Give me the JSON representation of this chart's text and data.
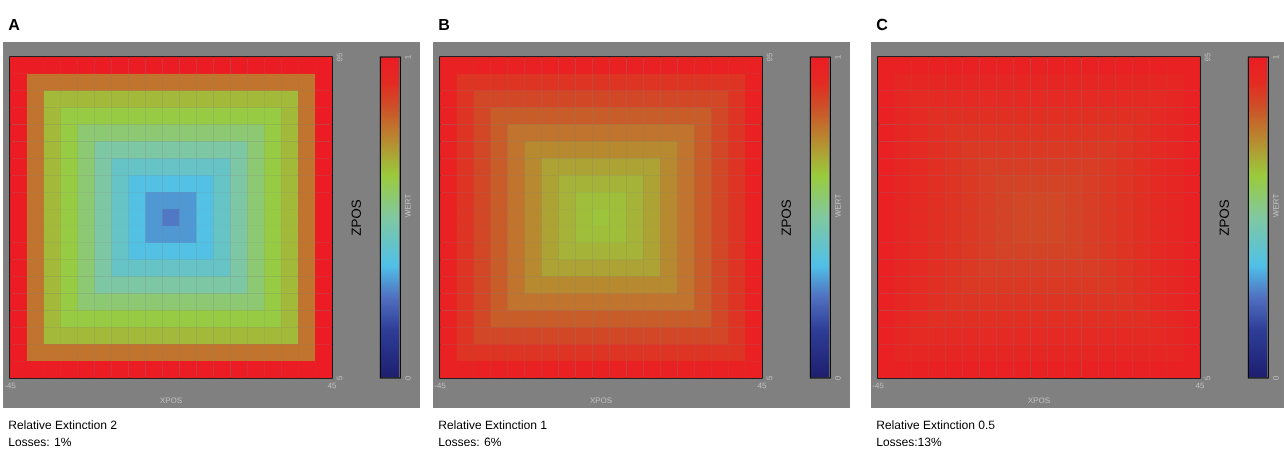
{
  "chart_data": [
    {
      "type": "heatmap",
      "title": "A",
      "xlabel": "XPOS",
      "ylabel": "ZPOS",
      "clabel": "WERT",
      "xlim": [
        -45,
        45
      ],
      "xticks": [
        -45,
        45
      ],
      "ylim": [
        5,
        95
      ],
      "yticks": [
        5,
        95
      ],
      "clim": [
        0,
        1
      ],
      "cticks": [
        0,
        1
      ],
      "annotations": [
        "Relative Extinction 2",
        "Losses: 1%"
      ],
      "cells": [
        [
          1,
          1,
          1,
          1,
          1,
          1,
          1,
          1,
          1,
          1,
          1,
          1,
          1,
          1,
          1,
          1,
          1,
          1,
          1
        ],
        [
          1,
          0.78,
          0.78,
          0.78,
          0.78,
          0.78,
          0.78,
          0.78,
          0.78,
          0.78,
          0.78,
          0.78,
          0.78,
          0.78,
          0.78,
          0.78,
          0.78,
          0.78,
          1
        ],
        [
          1,
          0.78,
          0.66,
          0.66,
          0.66,
          0.66,
          0.66,
          0.66,
          0.66,
          0.66,
          0.66,
          0.66,
          0.66,
          0.66,
          0.66,
          0.66,
          0.66,
          0.78,
          1
        ],
        [
          1,
          0.78,
          0.66,
          0.62,
          0.62,
          0.62,
          0.62,
          0.62,
          0.62,
          0.62,
          0.62,
          0.62,
          0.62,
          0.62,
          0.62,
          0.62,
          0.66,
          0.78,
          1
        ],
        [
          1,
          0.78,
          0.66,
          0.62,
          0.56,
          0.56,
          0.56,
          0.56,
          0.56,
          0.56,
          0.56,
          0.56,
          0.56,
          0.56,
          0.56,
          0.62,
          0.66,
          0.78,
          1
        ],
        [
          1,
          0.78,
          0.66,
          0.62,
          0.56,
          0.49,
          0.49,
          0.49,
          0.49,
          0.49,
          0.49,
          0.49,
          0.49,
          0.49,
          0.56,
          0.62,
          0.66,
          0.78,
          1
        ],
        [
          1,
          0.78,
          0.66,
          0.62,
          0.56,
          0.49,
          0.42,
          0.42,
          0.42,
          0.42,
          0.42,
          0.42,
          0.42,
          0.49,
          0.56,
          0.62,
          0.66,
          0.78,
          1
        ],
        [
          1,
          0.78,
          0.66,
          0.62,
          0.56,
          0.49,
          0.42,
          0.36,
          0.36,
          0.36,
          0.36,
          0.36,
          0.42,
          0.49,
          0.56,
          0.62,
          0.66,
          0.78,
          1
        ],
        [
          1,
          0.78,
          0.66,
          0.62,
          0.56,
          0.49,
          0.42,
          0.36,
          0.3,
          0.3,
          0.3,
          0.36,
          0.42,
          0.49,
          0.56,
          0.62,
          0.66,
          0.78,
          1
        ],
        [
          1,
          0.78,
          0.66,
          0.62,
          0.56,
          0.49,
          0.42,
          0.36,
          0.3,
          0.26,
          0.3,
          0.36,
          0.42,
          0.49,
          0.56,
          0.62,
          0.66,
          0.78,
          1
        ],
        [
          1,
          0.78,
          0.66,
          0.62,
          0.56,
          0.49,
          0.42,
          0.36,
          0.3,
          0.3,
          0.3,
          0.36,
          0.42,
          0.49,
          0.56,
          0.62,
          0.66,
          0.78,
          1
        ],
        [
          1,
          0.78,
          0.66,
          0.62,
          0.56,
          0.49,
          0.42,
          0.36,
          0.36,
          0.36,
          0.36,
          0.36,
          0.42,
          0.49,
          0.56,
          0.62,
          0.66,
          0.78,
          1
        ],
        [
          1,
          0.78,
          0.66,
          0.62,
          0.56,
          0.49,
          0.42,
          0.42,
          0.42,
          0.42,
          0.42,
          0.42,
          0.42,
          0.49,
          0.56,
          0.62,
          0.66,
          0.78,
          1
        ],
        [
          1,
          0.78,
          0.66,
          0.62,
          0.56,
          0.49,
          0.49,
          0.49,
          0.49,
          0.49,
          0.49,
          0.49,
          0.49,
          0.49,
          0.56,
          0.62,
          0.66,
          0.78,
          1
        ],
        [
          1,
          0.78,
          0.66,
          0.62,
          0.56,
          0.56,
          0.56,
          0.56,
          0.56,
          0.56,
          0.56,
          0.56,
          0.56,
          0.56,
          0.56,
          0.62,
          0.66,
          0.78,
          1
        ],
        [
          1,
          0.78,
          0.66,
          0.62,
          0.62,
          0.62,
          0.62,
          0.62,
          0.62,
          0.62,
          0.62,
          0.62,
          0.62,
          0.62,
          0.62,
          0.62,
          0.66,
          0.78,
          1
        ],
        [
          1,
          0.78,
          0.66,
          0.66,
          0.66,
          0.66,
          0.66,
          0.66,
          0.66,
          0.66,
          0.66,
          0.66,
          0.66,
          0.66,
          0.66,
          0.66,
          0.66,
          0.78,
          1
        ],
        [
          1,
          0.78,
          0.78,
          0.78,
          0.78,
          0.78,
          0.78,
          0.78,
          0.78,
          0.78,
          0.78,
          0.78,
          0.78,
          0.78,
          0.78,
          0.78,
          0.78,
          0.78,
          1
        ],
        [
          1,
          1,
          1,
          1,
          1,
          1,
          1,
          1,
          1,
          1,
          1,
          1,
          1,
          1,
          1,
          1,
          1,
          1,
          1
        ]
      ]
    },
    {
      "type": "heatmap",
      "title": "B",
      "xlabel": "XPOS",
      "ylabel": "ZPOS",
      "clabel": "WERT",
      "xlim": [
        -45,
        45
      ],
      "xticks": [
        -45,
        45
      ],
      "ylim": [
        5,
        95
      ],
      "yticks": [
        5,
        95
      ],
      "clim": [
        0,
        1
      ],
      "cticks": [
        0,
        1
      ],
      "annotations": [
        "Relative Extinction 1",
        "Losses: 6%"
      ],
      "cells": [
        [
          0.97,
          0.97,
          0.97,
          0.97,
          0.97,
          0.97,
          0.97,
          0.97,
          0.97,
          0.97,
          0.97,
          0.97,
          0.97,
          0.97,
          0.97,
          0.97,
          0.97,
          0.97,
          0.97
        ],
        [
          0.97,
          0.9,
          0.9,
          0.9,
          0.9,
          0.9,
          0.9,
          0.9,
          0.9,
          0.9,
          0.9,
          0.9,
          0.9,
          0.9,
          0.9,
          0.9,
          0.9,
          0.9,
          0.97
        ],
        [
          0.97,
          0.9,
          0.86,
          0.86,
          0.86,
          0.86,
          0.86,
          0.86,
          0.86,
          0.86,
          0.86,
          0.86,
          0.86,
          0.86,
          0.86,
          0.86,
          0.86,
          0.9,
          0.97
        ],
        [
          0.97,
          0.9,
          0.86,
          0.82,
          0.82,
          0.82,
          0.82,
          0.82,
          0.82,
          0.82,
          0.82,
          0.82,
          0.82,
          0.82,
          0.82,
          0.82,
          0.86,
          0.9,
          0.97
        ],
        [
          0.97,
          0.9,
          0.86,
          0.82,
          0.78,
          0.78,
          0.78,
          0.78,
          0.78,
          0.78,
          0.78,
          0.78,
          0.78,
          0.78,
          0.78,
          0.82,
          0.86,
          0.9,
          0.97
        ],
        [
          0.97,
          0.9,
          0.86,
          0.82,
          0.78,
          0.74,
          0.74,
          0.74,
          0.74,
          0.74,
          0.74,
          0.74,
          0.74,
          0.74,
          0.78,
          0.82,
          0.86,
          0.9,
          0.97
        ],
        [
          0.97,
          0.9,
          0.86,
          0.82,
          0.78,
          0.74,
          0.7,
          0.7,
          0.7,
          0.7,
          0.7,
          0.7,
          0.7,
          0.74,
          0.78,
          0.82,
          0.86,
          0.9,
          0.97
        ],
        [
          0.97,
          0.9,
          0.86,
          0.82,
          0.78,
          0.74,
          0.7,
          0.67,
          0.67,
          0.67,
          0.67,
          0.67,
          0.7,
          0.74,
          0.78,
          0.82,
          0.86,
          0.9,
          0.97
        ],
        [
          0.97,
          0.9,
          0.86,
          0.82,
          0.78,
          0.74,
          0.7,
          0.67,
          0.65,
          0.65,
          0.65,
          0.67,
          0.7,
          0.74,
          0.78,
          0.82,
          0.86,
          0.9,
          0.97
        ],
        [
          0.97,
          0.9,
          0.86,
          0.82,
          0.78,
          0.74,
          0.7,
          0.67,
          0.65,
          0.64,
          0.65,
          0.67,
          0.7,
          0.74,
          0.78,
          0.82,
          0.86,
          0.9,
          0.97
        ],
        [
          0.97,
          0.9,
          0.86,
          0.82,
          0.78,
          0.74,
          0.7,
          0.67,
          0.65,
          0.65,
          0.65,
          0.67,
          0.7,
          0.74,
          0.78,
          0.82,
          0.86,
          0.9,
          0.97
        ],
        [
          0.97,
          0.9,
          0.86,
          0.82,
          0.78,
          0.74,
          0.7,
          0.67,
          0.67,
          0.67,
          0.67,
          0.67,
          0.7,
          0.74,
          0.78,
          0.82,
          0.86,
          0.9,
          0.97
        ],
        [
          0.97,
          0.9,
          0.86,
          0.82,
          0.78,
          0.74,
          0.7,
          0.7,
          0.7,
          0.7,
          0.7,
          0.7,
          0.7,
          0.74,
          0.78,
          0.82,
          0.86,
          0.9,
          0.97
        ],
        [
          0.97,
          0.9,
          0.86,
          0.82,
          0.78,
          0.74,
          0.74,
          0.74,
          0.74,
          0.74,
          0.74,
          0.74,
          0.74,
          0.74,
          0.78,
          0.82,
          0.86,
          0.9,
          0.97
        ],
        [
          0.97,
          0.9,
          0.86,
          0.82,
          0.78,
          0.78,
          0.78,
          0.78,
          0.78,
          0.78,
          0.78,
          0.78,
          0.78,
          0.78,
          0.78,
          0.82,
          0.86,
          0.9,
          0.97
        ],
        [
          0.97,
          0.9,
          0.86,
          0.82,
          0.82,
          0.82,
          0.82,
          0.82,
          0.82,
          0.82,
          0.82,
          0.82,
          0.82,
          0.82,
          0.82,
          0.82,
          0.86,
          0.9,
          0.97
        ],
        [
          0.97,
          0.9,
          0.86,
          0.86,
          0.86,
          0.86,
          0.86,
          0.86,
          0.86,
          0.86,
          0.86,
          0.86,
          0.86,
          0.86,
          0.86,
          0.86,
          0.86,
          0.9,
          0.97
        ],
        [
          0.97,
          0.9,
          0.9,
          0.9,
          0.9,
          0.9,
          0.9,
          0.9,
          0.9,
          0.9,
          0.9,
          0.9,
          0.9,
          0.9,
          0.9,
          0.9,
          0.9,
          0.9,
          0.97
        ],
        [
          0.97,
          0.97,
          0.97,
          0.97,
          0.97,
          0.97,
          0.97,
          0.97,
          0.97,
          0.97,
          0.97,
          0.97,
          0.97,
          0.97,
          0.97,
          0.97,
          0.97,
          0.97,
          0.97
        ]
      ]
    },
    {
      "type": "heatmap",
      "title": "C",
      "xlabel": "XPOS",
      "ylabel": "ZPOS",
      "clabel": "WERT",
      "xlim": [
        -45,
        45
      ],
      "xticks": [
        -45,
        45
      ],
      "ylim": [
        5,
        95
      ],
      "yticks": [
        5,
        95
      ],
      "clim": [
        0,
        1
      ],
      "cticks": [
        0,
        1
      ],
      "annotations": [
        "Relative Extinction 0.5",
        "Losses:13%"
      ],
      "cells": [
        [
          0.97,
          0.97,
          0.97,
          0.97,
          0.97,
          0.97,
          0.97,
          0.97,
          0.97,
          0.97,
          0.97,
          0.97,
          0.97,
          0.97,
          0.97,
          0.97,
          0.97,
          0.97,
          0.97
        ],
        [
          0.97,
          0.94,
          0.94,
          0.94,
          0.94,
          0.94,
          0.94,
          0.94,
          0.94,
          0.94,
          0.94,
          0.94,
          0.94,
          0.94,
          0.94,
          0.94,
          0.94,
          0.94,
          0.97
        ],
        [
          0.97,
          0.94,
          0.92,
          0.92,
          0.92,
          0.92,
          0.92,
          0.92,
          0.92,
          0.92,
          0.92,
          0.92,
          0.92,
          0.92,
          0.92,
          0.92,
          0.92,
          0.94,
          0.97
        ],
        [
          0.97,
          0.94,
          0.92,
          0.91,
          0.91,
          0.91,
          0.91,
          0.91,
          0.91,
          0.91,
          0.91,
          0.91,
          0.91,
          0.91,
          0.91,
          0.91,
          0.92,
          0.94,
          0.97
        ],
        [
          0.97,
          0.94,
          0.92,
          0.91,
          0.9,
          0.9,
          0.9,
          0.9,
          0.9,
          0.9,
          0.9,
          0.9,
          0.9,
          0.9,
          0.9,
          0.91,
          0.92,
          0.94,
          0.97
        ],
        [
          0.97,
          0.94,
          0.92,
          0.91,
          0.9,
          0.89,
          0.89,
          0.89,
          0.89,
          0.89,
          0.89,
          0.89,
          0.89,
          0.89,
          0.9,
          0.91,
          0.92,
          0.94,
          0.97
        ],
        [
          0.97,
          0.94,
          0.92,
          0.91,
          0.9,
          0.89,
          0.88,
          0.88,
          0.88,
          0.88,
          0.88,
          0.88,
          0.88,
          0.89,
          0.9,
          0.91,
          0.92,
          0.94,
          0.97
        ],
        [
          0.97,
          0.94,
          0.92,
          0.91,
          0.9,
          0.89,
          0.88,
          0.87,
          0.87,
          0.87,
          0.87,
          0.87,
          0.88,
          0.89,
          0.9,
          0.91,
          0.92,
          0.94,
          0.97
        ],
        [
          0.97,
          0.94,
          0.92,
          0.91,
          0.9,
          0.89,
          0.88,
          0.87,
          0.86,
          0.86,
          0.86,
          0.87,
          0.88,
          0.89,
          0.9,
          0.91,
          0.92,
          0.94,
          0.97
        ],
        [
          0.97,
          0.94,
          0.92,
          0.91,
          0.9,
          0.89,
          0.88,
          0.87,
          0.86,
          0.86,
          0.86,
          0.87,
          0.88,
          0.89,
          0.9,
          0.91,
          0.92,
          0.94,
          0.97
        ],
        [
          0.97,
          0.94,
          0.92,
          0.91,
          0.9,
          0.89,
          0.88,
          0.87,
          0.86,
          0.86,
          0.86,
          0.87,
          0.88,
          0.89,
          0.9,
          0.91,
          0.92,
          0.94,
          0.97
        ],
        [
          0.97,
          0.94,
          0.92,
          0.91,
          0.9,
          0.89,
          0.88,
          0.87,
          0.87,
          0.87,
          0.87,
          0.87,
          0.88,
          0.89,
          0.9,
          0.91,
          0.92,
          0.94,
          0.97
        ],
        [
          0.97,
          0.94,
          0.92,
          0.91,
          0.9,
          0.89,
          0.88,
          0.88,
          0.88,
          0.88,
          0.88,
          0.88,
          0.88,
          0.89,
          0.9,
          0.91,
          0.92,
          0.94,
          0.97
        ],
        [
          0.97,
          0.94,
          0.92,
          0.91,
          0.9,
          0.89,
          0.89,
          0.89,
          0.89,
          0.89,
          0.89,
          0.89,
          0.89,
          0.89,
          0.9,
          0.91,
          0.92,
          0.94,
          0.97
        ],
        [
          0.97,
          0.94,
          0.92,
          0.91,
          0.9,
          0.9,
          0.9,
          0.9,
          0.9,
          0.9,
          0.9,
          0.9,
          0.9,
          0.9,
          0.9,
          0.91,
          0.92,
          0.94,
          0.97
        ],
        [
          0.97,
          0.94,
          0.92,
          0.91,
          0.91,
          0.91,
          0.91,
          0.91,
          0.91,
          0.91,
          0.91,
          0.91,
          0.91,
          0.91,
          0.91,
          0.91,
          0.92,
          0.94,
          0.97
        ],
        [
          0.97,
          0.94,
          0.92,
          0.92,
          0.92,
          0.92,
          0.92,
          0.92,
          0.92,
          0.92,
          0.92,
          0.92,
          0.92,
          0.92,
          0.92,
          0.92,
          0.92,
          0.94,
          0.97
        ],
        [
          0.97,
          0.94,
          0.94,
          0.94,
          0.94,
          0.94,
          0.94,
          0.94,
          0.94,
          0.94,
          0.94,
          0.94,
          0.94,
          0.94,
          0.94,
          0.94,
          0.94,
          0.94,
          0.97
        ],
        [
          0.97,
          0.97,
          0.97,
          0.97,
          0.97,
          0.97,
          0.97,
          0.97,
          0.97,
          0.97,
          0.97,
          0.97,
          0.97,
          0.97,
          0.97,
          0.97,
          0.97,
          0.97,
          0.97
        ]
      ]
    }
  ]
}
